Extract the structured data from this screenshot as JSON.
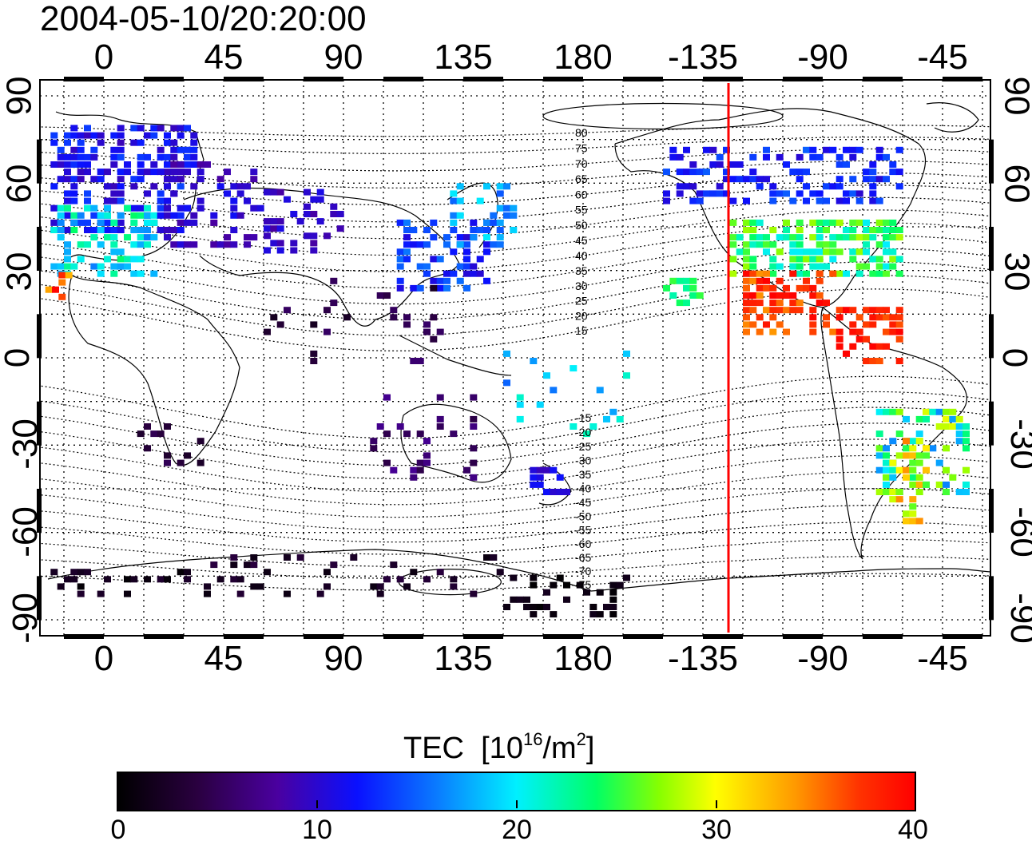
{
  "title": "2004-05-10/20:20:00",
  "top_ticks": [
    "0",
    "45",
    "90",
    "135",
    "180",
    "-135",
    "-90",
    "-45"
  ],
  "bottom_ticks": [
    "0",
    "45",
    "90",
    "135",
    "180",
    "-135",
    "-90",
    "-45"
  ],
  "lat_ticks": [
    "90",
    "60",
    "30",
    "0",
    "-30",
    "-60",
    "-90"
  ],
  "mag_lat_labels": [
    "80",
    "75",
    "70",
    "65",
    "60",
    "55",
    "50",
    "45",
    "40",
    "35",
    "30",
    "25",
    "20",
    "15",
    "-15",
    "-20",
    "-25",
    "-30",
    "-35",
    "-40",
    "-45",
    "-50",
    "-55",
    "-60",
    "-65",
    "-70",
    "-75"
  ],
  "colorbar": {
    "label": "TEC",
    "unit_base": "[10",
    "unit_exp": "16",
    "unit_mid": "/m",
    "unit_exp2": "2",
    "unit_end": "]",
    "ticks": [
      "0",
      "10",
      "20",
      "30",
      "40"
    ],
    "range": [
      0,
      40
    ]
  },
  "colors": {
    "terminator": "#ff0000"
  },
  "map_data": {
    "lon_range": [
      -25,
      333
    ],
    "lat_range": [
      -92,
      92
    ],
    "terminator_lon": -125
  }
}
